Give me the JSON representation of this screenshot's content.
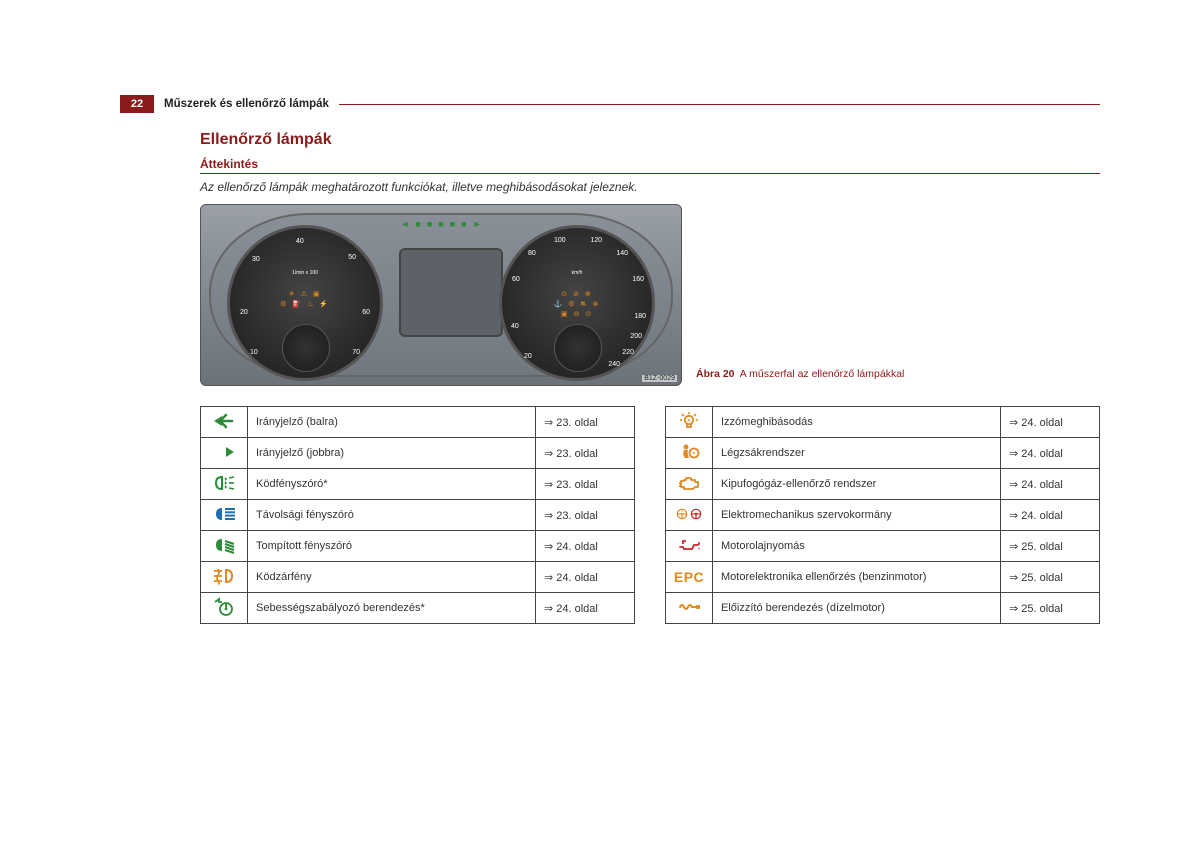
{
  "header": {
    "page_number": "22",
    "chapter": "Műszerek és ellenőrző lámpák"
  },
  "title": "Ellenőrző lámpák",
  "subtitle": "Áttekintés",
  "intro": "Az ellenőrző lámpák meghatározott funkciókat, illetve meghibásodásokat jeleznek.",
  "figure": {
    "ref_code": "B1Z-0029",
    "caption_label": "Ábra 20",
    "caption_text": "A műszerfal az ellenőrző lámpákkal",
    "tachometer_ticks": [
      "10",
      "20",
      "30",
      "40",
      "50",
      "60",
      "70"
    ],
    "tachometer_unit": "1/min x 100",
    "speedo_ticks": [
      "20",
      "40",
      "60",
      "80",
      "100",
      "120",
      "140",
      "160",
      "180",
      "200",
      "220",
      "240"
    ],
    "speedo_unit": "km/h"
  },
  "table_left": [
    {
      "icon": "turn-left",
      "color": "#2e8b3a",
      "label": "Irányjelző (balra)",
      "page": "23. oldal"
    },
    {
      "icon": "turn-right",
      "color": "#2e8b3a",
      "label": "Irányjelző (jobbra)",
      "page": "23. oldal"
    },
    {
      "icon": "fog-front",
      "color": "#2e8b3a",
      "label": "Ködfényszóró*",
      "page": "23. oldal"
    },
    {
      "icon": "high-beam",
      "color": "#1f6fb0",
      "label": "Távolsági fényszóró",
      "page": "23. oldal"
    },
    {
      "icon": "low-beam",
      "color": "#2e8b3a",
      "label": "Tompított fényszóró",
      "page": "24. oldal"
    },
    {
      "icon": "fog-rear",
      "color": "#e08a1f",
      "label": "Ködzárfény",
      "page": "24. oldal"
    },
    {
      "icon": "cruise",
      "color": "#2e8b3a",
      "label": "Sebességszabályozó berendezés*",
      "page": "24. oldal"
    }
  ],
  "table_right": [
    {
      "icon": "bulb-fail",
      "color": "#e08a1f",
      "label": "Izzómeghibásodás",
      "page": "24. oldal"
    },
    {
      "icon": "airbag",
      "color": "#e08a1f",
      "label": "Légzsákrendszer",
      "page": "24. oldal"
    },
    {
      "icon": "engine",
      "color": "#e08a1f",
      "label": "Kipufogógáz-ellenőrző rendszer",
      "page": "24. oldal"
    },
    {
      "icon": "eps",
      "color": "#e08a1f",
      "label": "Elektromechanikus szervokormány",
      "page": "24. oldal"
    },
    {
      "icon": "oil",
      "color": "#c62828",
      "label": "Motorolajnyomás",
      "page": "25. oldal"
    },
    {
      "icon": "epc",
      "color": "#e08a1f",
      "label": "Motorelektronika ellenőrzés (benzinmotor)",
      "page": "25. oldal"
    },
    {
      "icon": "glow",
      "color": "#e08a1f",
      "label": "Előizzító berendezés (dízelmotor)",
      "page": "25. oldal"
    }
  ],
  "ref_arrow": "⇒"
}
